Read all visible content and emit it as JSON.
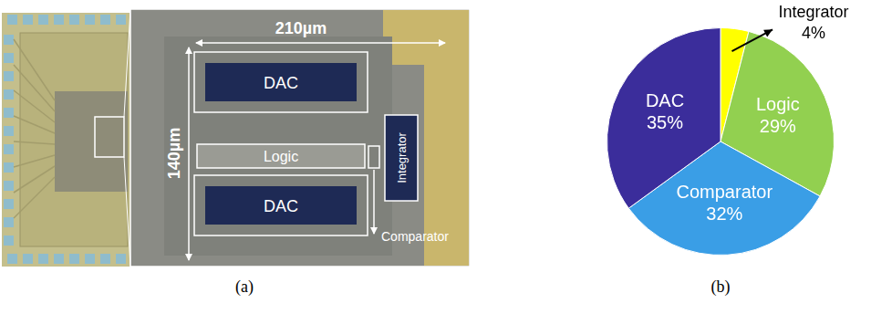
{
  "panel_labels": [
    "(a)",
    "(b)"
  ],
  "micrograph": {
    "width_label": "210µm",
    "height_label": "140µm",
    "blocks": [
      "DAC",
      "Logic",
      "DAC",
      "Integrator",
      "Comparator"
    ]
  },
  "chart_data": {
    "type": "pie",
    "categories": [
      "Integrator",
      "Logic",
      "Comparator",
      "DAC"
    ],
    "values": [
      4,
      29,
      32,
      35
    ],
    "value_labels": [
      "4%",
      "29%",
      "32%",
      "35%"
    ],
    "colors": [
      "#ffff00",
      "#92d050",
      "#3a9ee6",
      "#3b2d9b"
    ],
    "data_labels": true
  }
}
